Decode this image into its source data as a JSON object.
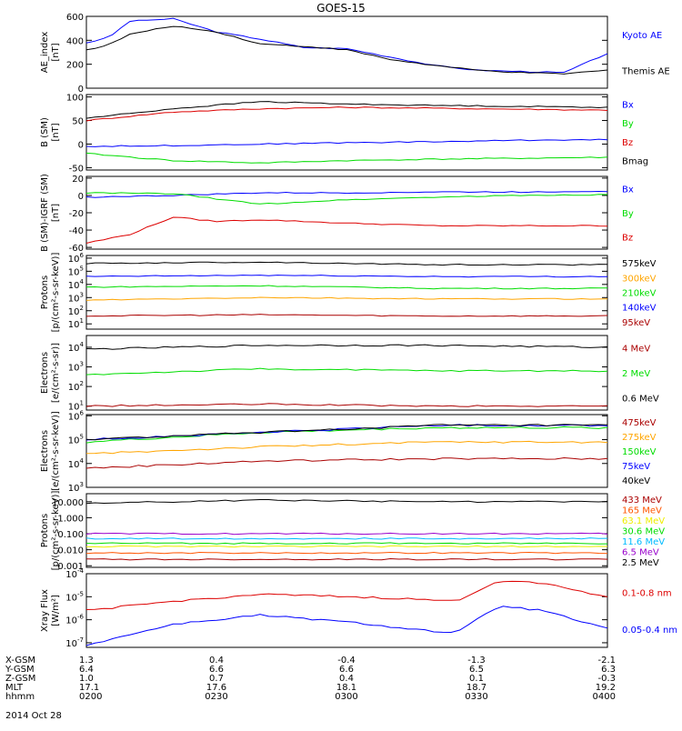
{
  "title": "GOES-15",
  "date_label": "2014 Oct 28",
  "colors": {
    "black": "#000000",
    "blue": "#0000ff",
    "red": "#dd0000",
    "green": "#00dd00",
    "orange": "#ffa500",
    "cyan": "#00bbff",
    "yellow": "#eeee00",
    "darkred": "#aa0000",
    "purple": "#9900cc",
    "orangered": "#ff5500"
  },
  "chart_data": [
    {
      "type": "line",
      "ylabel": "AE_index\n[nT]",
      "yticks": [
        "0",
        "200",
        "400",
        "600"
      ],
      "ylim": [
        0,
        600
      ],
      "series": [
        {
          "name": "Kyoto AE",
          "color": "blue",
          "x": [
            0,
            5,
            10,
            20,
            30,
            40,
            50,
            60,
            70,
            80,
            90,
            100,
            110,
            120
          ],
          "y": [
            380,
            420,
            560,
            580,
            470,
            410,
            340,
            330,
            260,
            190,
            150,
            140,
            130,
            290
          ]
        },
        {
          "name": "Themis AE",
          "color": "black",
          "x": [
            0,
            5,
            10,
            20,
            30,
            40,
            50,
            60,
            70,
            80,
            90,
            100,
            110,
            120
          ],
          "y": [
            320,
            360,
            450,
            520,
            470,
            370,
            350,
            320,
            240,
            190,
            150,
            130,
            120,
            150
          ]
        }
      ]
    },
    {
      "type": "line",
      "ylabel": "B (SM)\n[nT]",
      "yticks": [
        "-50",
        "0",
        "50",
        "100"
      ],
      "ylim": [
        -55,
        105
      ],
      "series": [
        {
          "name": "Bx",
          "color": "blue",
          "x": [
            0,
            20,
            40,
            60,
            80,
            100,
            120
          ],
          "y": [
            -5,
            -3,
            0,
            3,
            5,
            8,
            10
          ]
        },
        {
          "name": "By",
          "color": "green",
          "x": [
            0,
            20,
            40,
            60,
            80,
            100,
            120
          ],
          "y": [
            -20,
            -35,
            -40,
            -35,
            -32,
            -30,
            -28
          ]
        },
        {
          "name": "Bz",
          "color": "red",
          "x": [
            0,
            20,
            40,
            60,
            80,
            100,
            120
          ],
          "y": [
            50,
            68,
            75,
            78,
            76,
            74,
            72
          ]
        },
        {
          "name": "Bmag",
          "color": "black",
          "x": [
            0,
            20,
            40,
            60,
            80,
            100,
            120
          ],
          "y": [
            55,
            75,
            90,
            85,
            82,
            80,
            78
          ]
        }
      ]
    },
    {
      "type": "line",
      "ylabel": "B (SM)-IGRF (SM)\n[nT]",
      "yticks": [
        "-60",
        "-40",
        "-20",
        "0",
        "20"
      ],
      "ylim": [
        -62,
        22
      ],
      "series": [
        {
          "name": "Bx",
          "color": "blue",
          "x": [
            0,
            20,
            40,
            60,
            80,
            100,
            120
          ],
          "y": [
            -2,
            0,
            3,
            3,
            4,
            4,
            5
          ]
        },
        {
          "name": "By",
          "color": "green",
          "x": [
            0,
            20,
            40,
            60,
            80,
            100,
            120
          ],
          "y": [
            3,
            2,
            -10,
            -5,
            -2,
            0,
            1
          ]
        },
        {
          "name": "Bz",
          "color": "red",
          "x": [
            0,
            10,
            20,
            30,
            40,
            60,
            80,
            100,
            120
          ],
          "y": [
            -55,
            -45,
            -25,
            -30,
            -28,
            -32,
            -35,
            -35,
            -35
          ]
        }
      ]
    },
    {
      "type": "line",
      "ylabel": "Protons\n[p/(cm²-s-sr-keV)]",
      "log": true,
      "yticks_exp": [
        1,
        2,
        3,
        4,
        5,
        6
      ],
      "ylim_exp": [
        0.6,
        6.2
      ],
      "series": [
        {
          "name": "575keV",
          "color": "black",
          "x": [
            0,
            40,
            80,
            120
          ],
          "y_exp": [
            5.6,
            5.7,
            5.5,
            5.5
          ]
        },
        {
          "name": "300keV",
          "color": "orange",
          "x": [
            0,
            40,
            80,
            120
          ],
          "y_exp": [
            2.8,
            3.0,
            2.9,
            2.9
          ]
        },
        {
          "name": "210keV",
          "color": "green",
          "x": [
            0,
            40,
            80,
            120
          ],
          "y_exp": [
            3.8,
            3.9,
            3.7,
            3.7
          ]
        },
        {
          "name": "140keV",
          "color": "blue",
          "x": [
            0,
            40,
            80,
            120
          ],
          "y_exp": [
            4.6,
            4.7,
            4.6,
            4.6
          ]
        },
        {
          "name": "95keV",
          "color": "darkred",
          "x": [
            0,
            40,
            80,
            120
          ],
          "y_exp": [
            1.6,
            1.7,
            1.6,
            1.6
          ]
        }
      ]
    },
    {
      "type": "line",
      "ylabel": "Electrons\n[e/(cm²-s-sr)]",
      "log": true,
      "yticks_exp": [
        1,
        2,
        3,
        4
      ],
      "ylim_exp": [
        0.8,
        4.6
      ],
      "series": [
        {
          "name": "4 MeV",
          "color": "darkred",
          "x": [
            0,
            40,
            80,
            120
          ],
          "y_exp": [
            1.0,
            1.1,
            1.0,
            1.0
          ]
        },
        {
          "name": "2 MeV",
          "color": "green",
          "x": [
            0,
            40,
            80,
            120
          ],
          "y_exp": [
            2.6,
            2.9,
            2.8,
            2.8
          ]
        },
        {
          "name": "0.6 MeV",
          "color": "black",
          "x": [
            0,
            40,
            80,
            120
          ],
          "y_exp": [
            3.9,
            4.1,
            4.1,
            4.0
          ]
        }
      ]
    },
    {
      "type": "line",
      "ylabel": "Electrons\n[e/(cm²-s-sr-keV)]",
      "log": true,
      "yticks_exp": [
        3,
        4,
        5,
        6
      ],
      "ylim_exp": [
        3,
        6.05
      ],
      "series": [
        {
          "name": "475keV",
          "color": "darkred",
          "x": [
            0,
            40,
            80,
            120
          ],
          "y_exp": [
            3.8,
            4.1,
            4.2,
            4.2
          ]
        },
        {
          "name": "275keV",
          "color": "orange",
          "x": [
            0,
            40,
            80,
            120
          ],
          "y_exp": [
            4.4,
            4.7,
            4.9,
            4.9
          ]
        },
        {
          "name": "150keV",
          "color": "green",
          "x": [
            0,
            40,
            80,
            120
          ],
          "y_exp": [
            4.9,
            5.3,
            5.5,
            5.5
          ]
        },
        {
          "name": "75keV",
          "color": "blue",
          "x": [
            0,
            40,
            80,
            120
          ],
          "y_exp": [
            5.0,
            5.3,
            5.6,
            5.6
          ]
        },
        {
          "name": "40keV",
          "color": "black",
          "x": [
            0,
            40,
            80,
            120
          ],
          "y_exp": [
            5.0,
            5.3,
            5.6,
            5.6
          ]
        }
      ]
    },
    {
      "type": "line",
      "ylabel": "Protons\n[p/(cm²-s-sr-keV)]",
      "log": true,
      "yticks": [
        "0.001",
        "0.010",
        "0.100",
        "1.000",
        "10.000"
      ],
      "yticks_exp": [
        -3,
        -2,
        -1,
        0,
        1
      ],
      "ylim_exp": [
        -3.1,
        1.5
      ],
      "series": [
        {
          "name": "433 MeV",
          "color": "darkred",
          "x": [
            0,
            120
          ],
          "y_exp": [
            -2.6,
            -2.6
          ]
        },
        {
          "name": "165 MeV",
          "color": "orangered",
          "x": [
            0,
            120
          ],
          "y_exp": [
            -2.2,
            -2.2
          ]
        },
        {
          "name": "63.1 MeV",
          "color": "yellow",
          "x": [
            0,
            120
          ],
          "y_exp": [
            -1.8,
            -1.8
          ]
        },
        {
          "name": "30.6 MeV",
          "color": "green",
          "x": [
            0,
            120
          ],
          "y_exp": [
            -1.6,
            -1.6
          ]
        },
        {
          "name": "11.6 MeV",
          "color": "cyan",
          "x": [
            0,
            120
          ],
          "y_exp": [
            -1.3,
            -1.3
          ]
        },
        {
          "name": "6.5 MeV",
          "color": "purple",
          "x": [
            0,
            120
          ],
          "y_exp": [
            -1.0,
            -1.0
          ]
        },
        {
          "name": "2.5 MeV",
          "color": "black",
          "x": [
            0,
            40,
            80,
            120
          ],
          "y_exp": [
            0.9,
            1.1,
            1.0,
            1.0
          ]
        }
      ]
    },
    {
      "type": "line",
      "ylabel": "Xray Flux\n[W/m²]",
      "log": true,
      "yticks_exp": [
        -7,
        -6,
        -5,
        -4
      ],
      "ylim_exp": [
        -7.2,
        -4
      ],
      "series": [
        {
          "name": "0.1-0.8 nm",
          "color": "red",
          "x": [
            0,
            20,
            40,
            60,
            75,
            85,
            95,
            105,
            120
          ],
          "y_exp": [
            -5.6,
            -5.2,
            -4.9,
            -5.0,
            -5.1,
            -5.2,
            -4.3,
            -4.4,
            -5.0
          ]
        },
        {
          "name": "0.05-0.4 nm",
          "color": "blue",
          "x": [
            0,
            20,
            40,
            60,
            75,
            85,
            95,
            105,
            120
          ],
          "y_exp": [
            -7.1,
            -6.2,
            -5.8,
            -6.1,
            -6.4,
            -6.6,
            -5.4,
            -5.6,
            -6.4
          ]
        }
      ]
    }
  ],
  "xaxis": {
    "row_labels": [
      "X-GSM",
      "Y-GSM",
      "Z-GSM",
      "MLT",
      "hhmm"
    ],
    "columns": [
      [
        "1.3",
        "6.4",
        "1.0",
        "17.1",
        "0200"
      ],
      [
        "0.4",
        "6.6",
        "0.7",
        "17.6",
        "0230"
      ],
      [
        "-0.4",
        "6.6",
        "0.4",
        "18.1",
        "0300"
      ],
      [
        "-1.3",
        "6.5",
        "0.1",
        "18.7",
        "0330"
      ],
      [
        "-2.1",
        "6.3",
        "-0.3",
        "19.2",
        "0400"
      ]
    ]
  }
}
